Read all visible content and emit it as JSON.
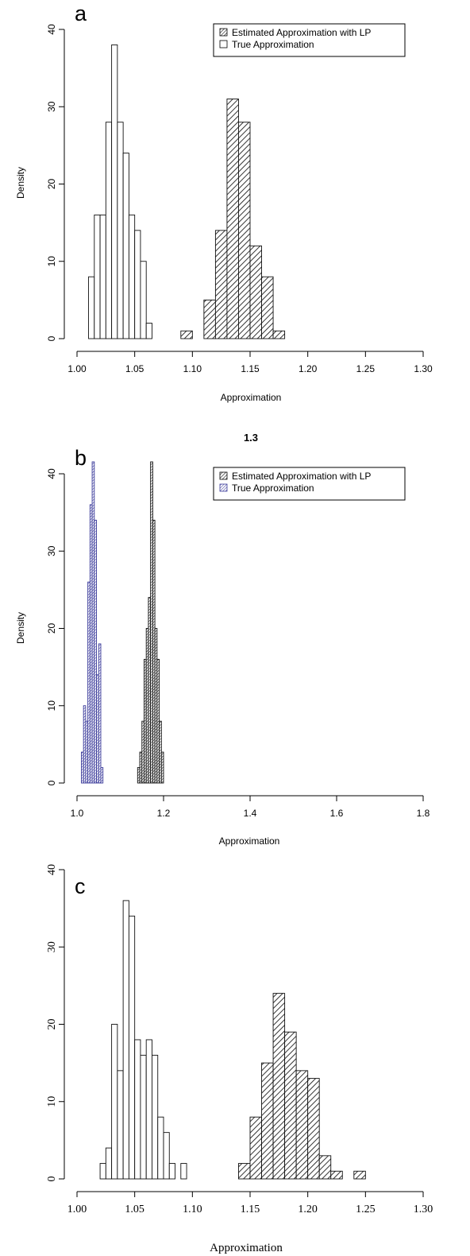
{
  "chart_data": [
    {
      "type": "bar",
      "panel_letter": "a",
      "xlabel": "Approximation",
      "ylabel": "Density",
      "xlim": [
        1.0,
        1.3
      ],
      "ylim": [
        0,
        40
      ],
      "x_ticks": [
        "1.00",
        "1.05",
        "1.10",
        "1.15",
        "1.20",
        "1.25",
        "1.30"
      ],
      "y_ticks": [
        "0",
        "10",
        "20",
        "30",
        "40"
      ],
      "legend": {
        "placement": "top-right",
        "entries": [
          "Estimated Approximation with LP",
          "True Approximation"
        ]
      },
      "series": [
        {
          "name": "Estimated Approximation with LP",
          "bin_width": 0.01,
          "bins": [
            {
              "x": 1.09,
              "y": 1
            },
            {
              "x": 1.11,
              "y": 5
            },
            {
              "x": 1.12,
              "y": 14
            },
            {
              "x": 1.13,
              "y": 31
            },
            {
              "x": 1.14,
              "y": 28
            },
            {
              "x": 1.15,
              "y": 12
            },
            {
              "x": 1.16,
              "y": 8
            },
            {
              "x": 1.17,
              "y": 1
            }
          ]
        },
        {
          "name": "True Approximation",
          "bin_width": 0.005,
          "bins": [
            {
              "x": 1.01,
              "y": 8
            },
            {
              "x": 1.015,
              "y": 16
            },
            {
              "x": 1.02,
              "y": 16
            },
            {
              "x": 1.025,
              "y": 28
            },
            {
              "x": 1.03,
              "y": 38
            },
            {
              "x": 1.035,
              "y": 28
            },
            {
              "x": 1.04,
              "y": 24
            },
            {
              "x": 1.045,
              "y": 16
            },
            {
              "x": 1.05,
              "y": 14
            },
            {
              "x": 1.055,
              "y": 10
            },
            {
              "x": 1.06,
              "y": 2
            }
          ]
        }
      ]
    },
    {
      "type": "bar",
      "title": "1.3",
      "panel_letter": "b",
      "xlabel": "Approximation",
      "ylabel": "Density",
      "xlim": [
        1.0,
        1.8
      ],
      "ylim": [
        0,
        40
      ],
      "x_ticks": [
        "1.0",
        "1.2",
        "1.4",
        "1.6",
        "1.8"
      ],
      "y_ticks": [
        "0",
        "10",
        "20",
        "30",
        "40"
      ],
      "legend": {
        "placement": "top-right",
        "entries": [
          "Estimated Approximation with LP",
          "True Approximation"
        ]
      },
      "series": [
        {
          "name": "Estimated Approximation with LP",
          "bin_width": 0.005,
          "bins": [
            {
              "x": 1.14,
              "y": 2
            },
            {
              "x": 1.145,
              "y": 4
            },
            {
              "x": 1.15,
              "y": 8
            },
            {
              "x": 1.155,
              "y": 16
            },
            {
              "x": 1.16,
              "y": 20
            },
            {
              "x": 1.165,
              "y": 24
            },
            {
              "x": 1.17,
              "y": 42
            },
            {
              "x": 1.175,
              "y": 34
            },
            {
              "x": 1.18,
              "y": 20
            },
            {
              "x": 1.185,
              "y": 16
            },
            {
              "x": 1.19,
              "y": 8
            },
            {
              "x": 1.195,
              "y": 4
            }
          ]
        },
        {
          "name": "True Approximation",
          "bin_width": 0.005,
          "bins": [
            {
              "x": 1.01,
              "y": 4
            },
            {
              "x": 1.015,
              "y": 10
            },
            {
              "x": 1.02,
              "y": 8
            },
            {
              "x": 1.025,
              "y": 26
            },
            {
              "x": 1.03,
              "y": 36
            },
            {
              "x": 1.035,
              "y": 42
            },
            {
              "x": 1.04,
              "y": 34
            },
            {
              "x": 1.045,
              "y": 14
            },
            {
              "x": 1.05,
              "y": 18
            },
            {
              "x": 1.055,
              "y": 2
            }
          ]
        }
      ]
    },
    {
      "type": "bar",
      "panel_letter": "c",
      "xlabel": "Approximation",
      "ylabel": "",
      "xlim": [
        1.0,
        1.3
      ],
      "ylim": [
        0,
        40
      ],
      "x_ticks": [
        "1.00",
        "1.05",
        "1.10",
        "1.15",
        "1.20",
        "1.25",
        "1.30"
      ],
      "y_ticks": [
        "0",
        "10",
        "20",
        "30",
        "40"
      ],
      "series": [
        {
          "bin_width": 0.01,
          "bins": [
            {
              "x": 1.14,
              "y": 2
            },
            {
              "x": 1.15,
              "y": 8
            },
            {
              "x": 1.16,
              "y": 15
            },
            {
              "x": 1.17,
              "y": 24
            },
            {
              "x": 1.18,
              "y": 19
            },
            {
              "x": 1.19,
              "y": 14
            },
            {
              "x": 1.2,
              "y": 13
            },
            {
              "x": 1.21,
              "y": 3
            },
            {
              "x": 1.22,
              "y": 1
            },
            {
              "x": 1.23,
              "y": 0
            },
            {
              "x": 1.24,
              "y": 1
            }
          ]
        },
        {
          "bin_width": 0.005,
          "bins": [
            {
              "x": 1.02,
              "y": 2
            },
            {
              "x": 1.025,
              "y": 4
            },
            {
              "x": 1.03,
              "y": 20
            },
            {
              "x": 1.035,
              "y": 14
            },
            {
              "x": 1.04,
              "y": 36
            },
            {
              "x": 1.045,
              "y": 34
            },
            {
              "x": 1.05,
              "y": 18
            },
            {
              "x": 1.055,
              "y": 16
            },
            {
              "x": 1.06,
              "y": 18
            },
            {
              "x": 1.065,
              "y": 16
            },
            {
              "x": 1.07,
              "y": 8
            },
            {
              "x": 1.075,
              "y": 6
            },
            {
              "x": 1.08,
              "y": 2
            },
            {
              "x": 1.085,
              "y": 0
            },
            {
              "x": 1.09,
              "y": 2
            }
          ]
        }
      ]
    }
  ],
  "colors": {
    "axis": "#000000",
    "hatch_dark": "#111111",
    "hatch_blue": "#3a3a9a",
    "open_fill": "#ffffff"
  }
}
